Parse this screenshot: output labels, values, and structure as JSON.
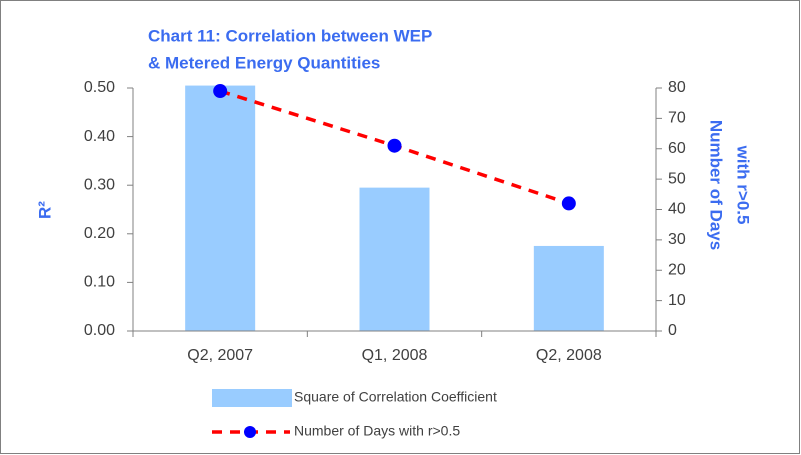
{
  "chart_data": {
    "type": "bar_line",
    "title": [
      "Chart 11: Correlation between WEP",
      "& Metered Energy Quantities"
    ],
    "categories": [
      "Q2, 2007",
      "Q1, 2008",
      "Q2, 2008"
    ],
    "series": [
      {
        "name": "Square of Correlation Coefficient",
        "type": "bar",
        "color": "#99ccff",
        "values": [
          0.505,
          0.295,
          0.175
        ]
      },
      {
        "name": "Number of Days with r>0.5",
        "type": "line",
        "axis": "y2",
        "color": "#ff0000",
        "marker_color": "#0000ff",
        "values": [
          79,
          61,
          42
        ]
      }
    ],
    "ylabel": "R²",
    "y2label": [
      "Number of Days",
      "with r>0.5"
    ],
    "ylim": [
      0,
      0.5
    ],
    "yticks": [
      {
        "value": 0,
        "label": "0.00"
      },
      {
        "value": 0.1,
        "label": "0.10"
      },
      {
        "value": 0.2,
        "label": "0.20"
      },
      {
        "value": 0.3,
        "label": "0.30"
      },
      {
        "value": 0.4,
        "label": "0.40"
      },
      {
        "value": 0.5,
        "label": "0.50"
      }
    ],
    "y2lim": [
      0,
      80
    ],
    "y2ticks": [
      0,
      10,
      20,
      30,
      40,
      50,
      60,
      70,
      80
    ]
  }
}
